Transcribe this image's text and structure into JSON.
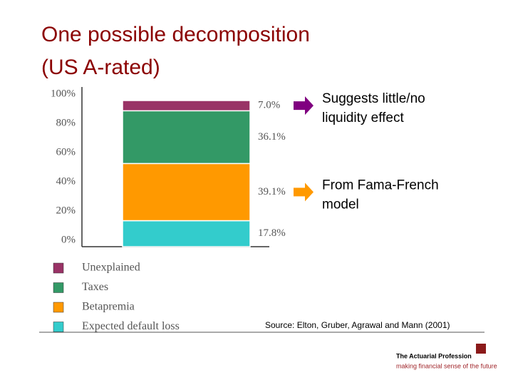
{
  "chart_data": {
    "type": "stacked-bar",
    "title": [
      "One possible decomposition",
      "(US A-rated)"
    ],
    "categories": [
      null
    ],
    "series": [
      {
        "name": "Expected default loss",
        "color": "#33cccc",
        "values": [
          17.8
        ],
        "value_labels": [
          "17.8%"
        ]
      },
      {
        "name": "Betapremia",
        "color": "#ff9900",
        "values": [
          39.1
        ],
        "value_labels": [
          "39.1%"
        ]
      },
      {
        "name": "Taxes",
        "color": "#339966",
        "values": [
          36.1
        ],
        "value_labels": [
          "36.1%"
        ]
      },
      {
        "name": "Unexplained",
        "color": "#993366",
        "values": [
          7.0
        ],
        "value_labels": [
          "7.0%"
        ]
      }
    ],
    "ylim": [
      0,
      100
    ],
    "yticks": [
      {
        "value": 0,
        "label": "0%"
      },
      {
        "value": 20,
        "label": "20%"
      },
      {
        "value": 40,
        "label": "40%"
      },
      {
        "value": 60,
        "label": "60%"
      },
      {
        "value": 80,
        "label": "80%"
      },
      {
        "value": 100,
        "label": "100%"
      }
    ],
    "grid": false,
    "annotations": [
      {
        "lines": [
          "Suggests little/no",
          "liquidity effect"
        ],
        "series": 3,
        "color": "#800080"
      },
      {
        "lines": [
          "From Fama-French",
          "model"
        ],
        "series": 1,
        "color": "#ff9900"
      }
    ],
    "source": "Source: Elton, Gruber, Agrawal and Mann (2001)"
  },
  "branding": {
    "name": "The Actuarial Profession",
    "tagline": "making financial sense of the future"
  }
}
